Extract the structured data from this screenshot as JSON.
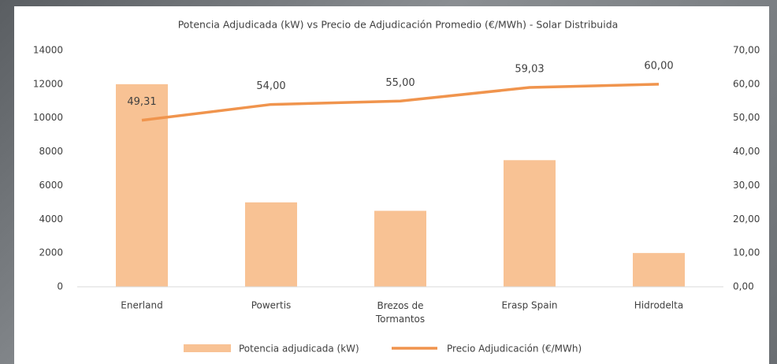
{
  "chart_data": {
    "type": "bar-line",
    "title": "Potencia Adjudicada (kW) vs Precio de Adjudicación Promedio (€/MWh) - Solar Distribuida",
    "categories": [
      "Enerland",
      "Powertis",
      "Brezos de Tormantos",
      "Erasp Spain",
      "Hidrodelta"
    ],
    "series": [
      {
        "name": "Potencia adjudicada (kW)",
        "type": "bar",
        "color": "#f8c294",
        "values": [
          12000,
          5000,
          4500,
          7500,
          2000
        ]
      },
      {
        "name": "Precio Adjudicación (€/MWh)",
        "type": "line",
        "axis": "y2",
        "color": "#f0944d",
        "values": [
          49.31,
          54.0,
          55.0,
          59.03,
          60.0
        ],
        "value_labels": [
          "49,31",
          "54,00",
          "55,00",
          "59,03",
          "60,00"
        ]
      }
    ],
    "ylim": [
      0,
      14000
    ],
    "yticks": [
      0,
      2000,
      4000,
      6000,
      8000,
      10000,
      12000,
      14000
    ],
    "y2lim": [
      0,
      70
    ],
    "y2ticks": [
      {
        "value": 0,
        "label": "0,00"
      },
      {
        "value": 10,
        "label": "10,00"
      },
      {
        "value": 20,
        "label": "20,00"
      },
      {
        "value": 30,
        "label": "30,00"
      },
      {
        "value": 40,
        "label": "40,00"
      },
      {
        "value": 50,
        "label": "50,00"
      },
      {
        "value": 60,
        "label": "60,00"
      },
      {
        "value": 70,
        "label": "70,00"
      }
    ],
    "grid": false,
    "legend": "bottom"
  }
}
